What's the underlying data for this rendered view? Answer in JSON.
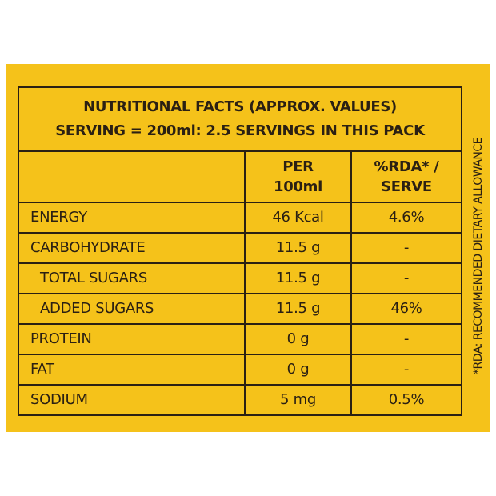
{
  "title": {
    "line1": "NUTRITIONAL FACTS  (APPROX. VALUES)",
    "line2": "SERVING = 200ml: 2.5 SERVINGS IN THIS PACK"
  },
  "columns": {
    "per_100ml_line1": "PER",
    "per_100ml_line2": "100ml",
    "rda_line1": "%RDA* /",
    "rda_line2": "SERVE"
  },
  "rows": [
    {
      "name": "ENERGY",
      "per_100ml": "46 Kcal",
      "rda": "4.6%"
    },
    {
      "name": "CARBOHYDRATE",
      "per_100ml": "11.5 g",
      "rda": "-"
    },
    {
      "name": "TOTAL SUGARS",
      "per_100ml": "11.5 g",
      "rda": "-"
    },
    {
      "name": "ADDED SUGARS",
      "per_100ml": "11.5 g",
      "rda": "46%"
    },
    {
      "name": "PROTEIN",
      "per_100ml": "0 g",
      "rda": "-"
    },
    {
      "name": "FAT",
      "per_100ml": "0 g",
      "rda": "-"
    },
    {
      "name": "SODIUM",
      "per_100ml": "5 mg",
      "rda": "0.5%"
    }
  ],
  "footnote": "*RDA: RECOMMENDED DIETARY ALLOWANCE",
  "colors": {
    "background": "#f5c21a",
    "ink": "#2b2013"
  }
}
